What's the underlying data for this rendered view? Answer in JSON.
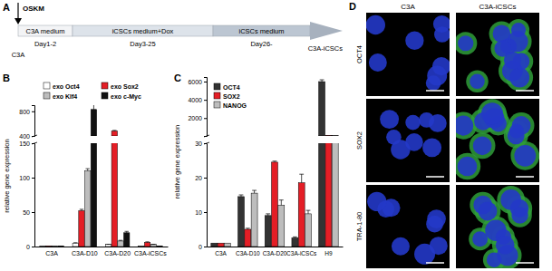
{
  "diagram": {
    "panel": "A",
    "treatment": "OSKM",
    "start": "C3A",
    "end": "C3A-iCSCs",
    "stages": [
      {
        "label": "C3A medium",
        "day": "Day1-2"
      },
      {
        "label": "iCSCs medium+Dox",
        "day": "Day3-25"
      },
      {
        "label": "iCSCs medium",
        "day": "Day26-"
      }
    ]
  },
  "chart_data": [
    {
      "panel": "B",
      "type": "bar",
      "y_label": "relative gene expression",
      "legend": "top",
      "categories": [
        "C3A",
        "C3A-D10",
        "C3A-D20",
        "C3A-iCSCs"
      ],
      "series": [
        {
          "name": "exo Oct4",
          "color": "#ffffff",
          "values": [
            1,
            5,
            3,
            1
          ],
          "errors": [
            null,
            0.5,
            0.3,
            null
          ]
        },
        {
          "name": "exo Sox2",
          "color": "#e41e26",
          "values": [
            1,
            52,
            480,
            6
          ],
          "errors": [
            null,
            2,
            10,
            0.8
          ]
        },
        {
          "name": "exo Klf4",
          "color": "#bdbdbd",
          "values": [
            1,
            110,
            8,
            3
          ],
          "errors": [
            null,
            3,
            1,
            0.3
          ]
        },
        {
          "name": "exo c-Myc",
          "color": "#111111",
          "values": [
            1,
            830,
            20,
            1
          ],
          "errors": [
            null,
            80,
            2,
            null
          ]
        }
      ],
      "y_segments": [
        {
          "ylim": [
            0,
            150
          ],
          "yticks": [
            0,
            50,
            100,
            150
          ]
        },
        {
          "ylim": [
            400,
            900
          ],
          "yticks": [
            400,
            800
          ]
        }
      ]
    },
    {
      "panel": "C",
      "type": "bar",
      "y_label": "relative gene expression",
      "legend": "top-left",
      "categories": [
        "C3A",
        "C3A-D10",
        "C3A-D20",
        "C3A-iCSCs",
        "H9"
      ],
      "series": [
        {
          "name": "OCT4",
          "color": "#333333",
          "values": [
            1,
            14.5,
            9,
            2.5,
            6000
          ],
          "errors": [
            null,
            0.5,
            0.5,
            0.3,
            200
          ]
        },
        {
          "name": "SOX2",
          "color": "#e41e26",
          "values": [
            1,
            5,
            24.5,
            18.5,
            100
          ],
          "errors": [
            null,
            0.3,
            0.3,
            2.5,
            null
          ]
        },
        {
          "name": "NANOG",
          "color": "#bdbdbd",
          "values": [
            1,
            15.5,
            12,
            9.5,
            90
          ],
          "errors": [
            null,
            0.8,
            1.5,
            1,
            null
          ]
        }
      ],
      "y_segments": [
        {
          "ylim": [
            0,
            30
          ],
          "yticks": [
            0,
            10,
            20,
            30
          ]
        },
        {
          "ylim": [
            40,
            6500
          ],
          "yticks": [
            2000,
            4000,
            6000
          ]
        }
      ]
    }
  ],
  "images": {
    "panel": "D",
    "columns": [
      "C3A",
      "C3A-iCSCs"
    ],
    "rows": [
      "OCT4",
      "SOX2",
      "TRA-1-80"
    ]
  }
}
